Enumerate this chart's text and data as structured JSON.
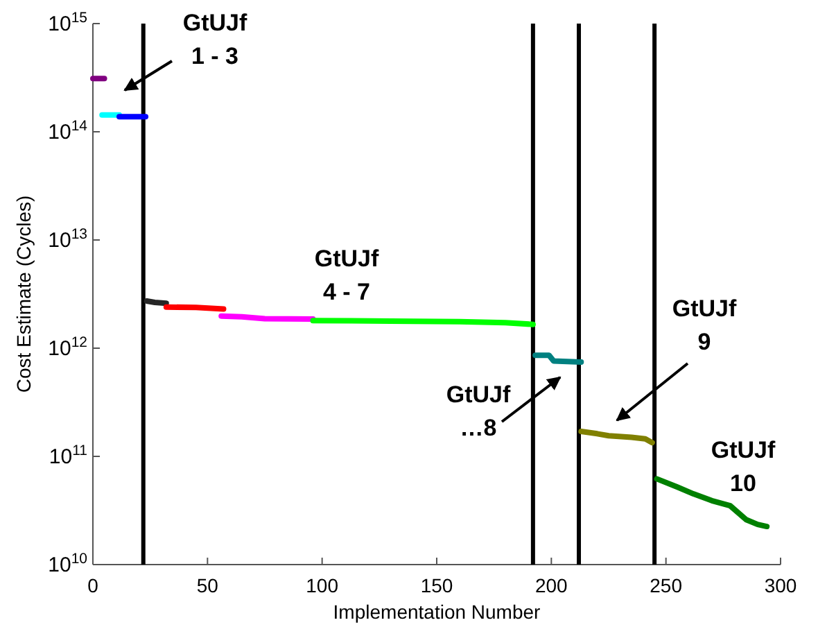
{
  "chart_data": {
    "type": "line",
    "xlabel": "Implementation Number",
    "ylabel": "Cost Estimate (Cycles)",
    "log": "y",
    "xlim": [
      0,
      300
    ],
    "xticks": [
      0,
      50,
      100,
      150,
      200,
      250,
      300
    ],
    "ylim": [
      10000000000.0,
      1000000000000000.0
    ],
    "yticks": [
      {
        "value": 10000000000.0,
        "label": "10$^{10}$"
      },
      {
        "value": 100000000000.0,
        "label": "10$^{11}$"
      },
      {
        "value": 1000000000000.0,
        "label": "10$^{12}$"
      },
      {
        "value": 10000000000000.0,
        "label": "10$^{13}$"
      },
      {
        "value": 100000000000000.0,
        "label": "10$^{14}$"
      },
      {
        "value": 1000000000000000.0,
        "label": "10$^{15}$"
      }
    ],
    "grid": false,
    "marker": "none",
    "line_style": "solid",
    "series": [
      {
        "color": "#800080",
        "x": [
          0,
          5
        ],
        "values": [
          310000000000000.0,
          310000000000000.0
        ]
      },
      {
        "color": "#00ffff",
        "x": [
          4,
          11.5
        ],
        "values": [
          143000000000000.0,
          143000000000000.0
        ]
      },
      {
        "color": "#0000ff",
        "x": [
          11.5,
          23
        ],
        "values": [
          138000000000000.0,
          138000000000000.0
        ]
      },
      {
        "color": "#262626",
        "x": [
          23.5,
          27,
          32
        ],
        "values": [
          2730000000000.0,
          2650000000000.0,
          2600000000000.0
        ]
      },
      {
        "color": "#ff0000",
        "x": [
          32,
          45,
          57
        ],
        "values": [
          2400000000000.0,
          2380000000000.0,
          2300000000000.0
        ]
      },
      {
        "color": "#ff00ff",
        "x": [
          56,
          65,
          75,
          96
        ],
        "values": [
          1980000000000.0,
          1950000000000.0,
          1870000000000.0,
          1860000000000.0
        ]
      },
      {
        "color": "#00ff00",
        "x": [
          96,
          130,
          160,
          180,
          192
        ],
        "values": [
          1800000000000.0,
          1780000000000.0,
          1760000000000.0,
          1720000000000.0,
          1660000000000.0
        ]
      },
      {
        "color": "#008080",
        "x": [
          193,
          199,
          201,
          213
        ],
        "values": [
          860000000000.0,
          860000000000.0,
          760000000000.0,
          745000000000.0
        ]
      },
      {
        "color": "#808000",
        "x": [
          213,
          220,
          225,
          235,
          241,
          244
        ],
        "values": [
          170000000000.0,
          162000000000.0,
          155000000000.0,
          150000000000.0,
          145000000000.0,
          134000000000.0
        ]
      },
      {
        "color": "#008000",
        "x": [
          246,
          255,
          262,
          270,
          278,
          285,
          290,
          294
        ],
        "values": [
          62000000000.0,
          52000000000.0,
          45000000000.0,
          39000000000.0,
          35000000000.0,
          26000000000.0,
          23500000000.0,
          22500000000.0
        ]
      }
    ],
    "ref_lines": [
      {
        "axis": "x",
        "value": 22,
        "color": "#000000"
      },
      {
        "axis": "x",
        "value": 192,
        "color": "#000000"
      },
      {
        "axis": "x",
        "value": 212,
        "color": "#000000"
      },
      {
        "axis": "x",
        "value": 245,
        "color": "#000000"
      }
    ],
    "annotations": [
      "GtUJf\n1 - 3",
      "GtUJf\n4 - 7",
      "GtUJf\n…8",
      "GtUJf\n9",
      "GtUJf\n10"
    ]
  }
}
